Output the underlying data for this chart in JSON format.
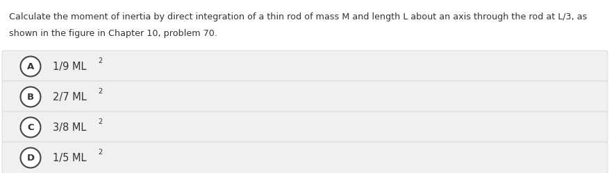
{
  "question_line1": "Calculate the moment of inertia by direct integration of a thin rod of mass M and length L about an axis through the rod at L/3, as",
  "question_line2": "shown in the figure in Chapter 10, problem 70.",
  "options": [
    {
      "label": "A",
      "text": "1/9 ML",
      "superscript": "2"
    },
    {
      "label": "B",
      "text": "2/7 ML",
      "superscript": "2"
    },
    {
      "label": "C",
      "text": "3/8 ML",
      "superscript": "2"
    },
    {
      "label": "D",
      "text": "1/5 ML",
      "superscript": "2"
    }
  ],
  "background_color": "#ffffff",
  "option_box_color": "#f0f0f0",
  "option_box_edge_color": "#d0d0d0",
  "circle_color": "#ffffff",
  "circle_edge_color": "#444444",
  "text_color": "#333333",
  "question_fontsize": 9.2,
  "option_fontsize": 10.5,
  "label_fontsize": 9.5
}
